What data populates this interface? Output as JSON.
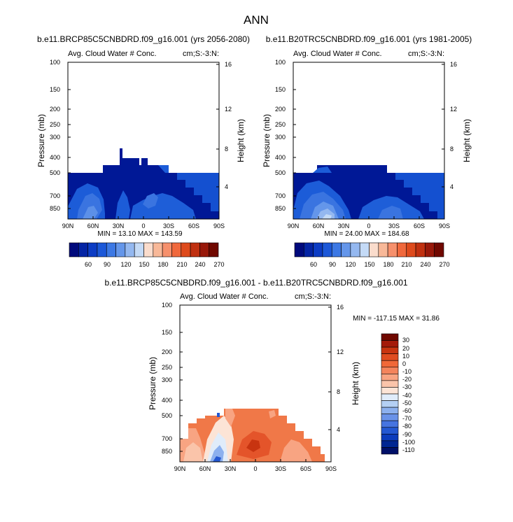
{
  "page_title": "ANN",
  "chart_data": [
    {
      "type": "heatmap",
      "title": "b.e11.BRCP85C5CNBDRD.f09_g16.001 (yrs 2056-2080)",
      "subtitle_left": "Avg. Cloud Water # Conc.",
      "subtitle_right": "cm;S:-3:N:",
      "ylabel": "Pressure (mb)",
      "ylabel_right": "Height (km)",
      "x_ticks": [
        "90N",
        "60N",
        "30N",
        "0",
        "30S",
        "60S",
        "90S"
      ],
      "y_ticks": [
        "100",
        "150",
        "200",
        "250",
        "300",
        "400",
        "500",
        "700",
        "850"
      ],
      "y_ticks_right": [
        "16",
        "12",
        "8",
        "4"
      ],
      "stats": "MIN = 13.10  MAX = 143.59",
      "colorbar_labels": [
        "60",
        "90",
        "120",
        "150",
        "180",
        "210",
        "240",
        "270"
      ]
    },
    {
      "type": "heatmap",
      "title": "b.e11.B20TRC5CNBDRD.f09_g16.001 (yrs 1981-2005)",
      "subtitle_left": "Avg. Cloud Water # Conc.",
      "subtitle_right": "cm;S:-3:N:",
      "ylabel": "Pressure (mb)",
      "ylabel_right": "Height (km)",
      "x_ticks": [
        "90N",
        "60N",
        "30N",
        "0",
        "30S",
        "60S",
        "90S"
      ],
      "y_ticks": [
        "100",
        "150",
        "200",
        "250",
        "300",
        "400",
        "500",
        "700",
        "850"
      ],
      "y_ticks_right": [
        "16",
        "12",
        "8",
        "4"
      ],
      "stats": "MIN = 24.00  MAX = 184.68",
      "colorbar_labels": [
        "60",
        "90",
        "120",
        "150",
        "180",
        "210",
        "240",
        "270"
      ]
    },
    {
      "type": "heatmap",
      "title": "b.e11.BRCP85C5CNBDRD.f09_g16.001 - b.e11.B20TRC5CNBDRD.f09_g16.001",
      "subtitle_left": "Avg. Cloud Water # Conc.",
      "subtitle_right": "cm;S:-3:N:",
      "ylabel": "Pressure (mb)",
      "ylabel_right": "Height (km)",
      "x_ticks": [
        "90N",
        "60N",
        "30N",
        "0",
        "30S",
        "60S",
        "90S"
      ],
      "y_ticks": [
        "100",
        "150",
        "200",
        "250",
        "300",
        "400",
        "500",
        "700",
        "850"
      ],
      "y_ticks_right": [
        "16",
        "12",
        "8",
        "4"
      ],
      "stats": "MIN = -117.15  MAX =  31.86",
      "colorbar_labels": [
        "30",
        "20",
        "10",
        "0",
        "-10",
        "-20",
        "-30",
        "-40",
        "-50",
        "-60",
        "-70",
        "-80",
        "-90",
        "-100",
        "-110"
      ]
    }
  ],
  "colors": {
    "top_bar": [
      "#000a7c",
      "#0424a4",
      "#0c3cc4",
      "#1c58d8",
      "#3c78e4",
      "#6496ea",
      "#94b8f0",
      "#c4daf6",
      "#fadccc",
      "#f8b898",
      "#f6906c",
      "#f0683c",
      "#de4a1c",
      "#c03010",
      "#98180a",
      "#700800"
    ],
    "diff_bar": [
      "#700800",
      "#a41a0a",
      "#c83410",
      "#e04c20",
      "#f06838",
      "#f4845c",
      "#f8a482",
      "#fac4aa",
      "#fce4d6",
      "#e0ecfa",
      "#b4d0f4",
      "#8cb0ee",
      "#6a92e8",
      "#4674e0",
      "#2458d2",
      "#0c3cbc",
      "#002692",
      "#001068"
    ]
  }
}
